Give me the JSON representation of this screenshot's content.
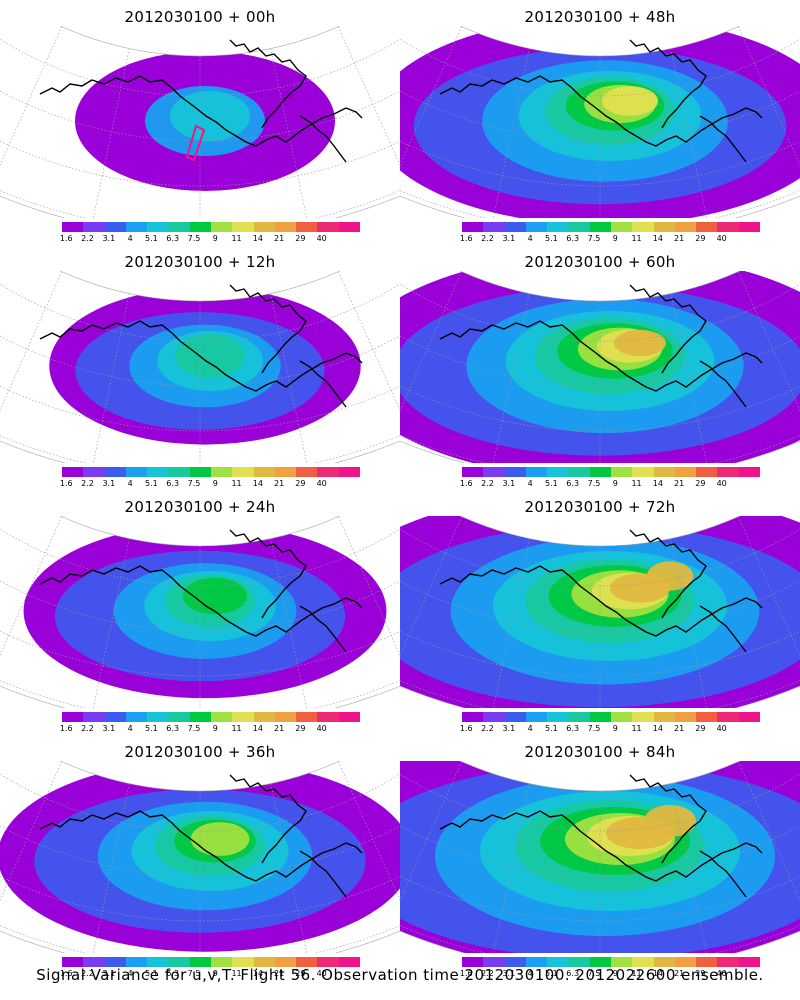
{
  "panels": [
    {
      "title": "2012030100 + 00h",
      "lead": 0
    },
    {
      "title": "2012030100 + 48h",
      "lead": 48
    },
    {
      "title": "2012030100 + 12h",
      "lead": 12
    },
    {
      "title": "2012030100 + 60h",
      "lead": 60
    },
    {
      "title": "2012030100 + 24h",
      "lead": 24
    },
    {
      "title": "2012030100 + 72h",
      "lead": 72
    },
    {
      "title": "2012030100 + 36h",
      "lead": 36
    },
    {
      "title": "2012030100 + 84h",
      "lead": 84
    }
  ],
  "colorbar": {
    "labels": [
      "1.6",
      "2.2",
      "3.1",
      "4",
      "5.1",
      "6.3",
      "7.5",
      "9",
      "11",
      "14",
      "21",
      "29",
      "40"
    ],
    "colors": [
      "#9a00d8",
      "#7a3cf0",
      "#3c5cf0",
      "#1aa0f0",
      "#16c4d8",
      "#18c8a0",
      "#00c840",
      "#a0e040",
      "#e0e050",
      "#e0b840",
      "#f0a040",
      "#f06040",
      "#f02878",
      "#f0148c"
    ]
  },
  "footer": "Signal Variance for u,v,T. Flight 56. Observation time 2012030100. 2012022600 ensemble."
}
